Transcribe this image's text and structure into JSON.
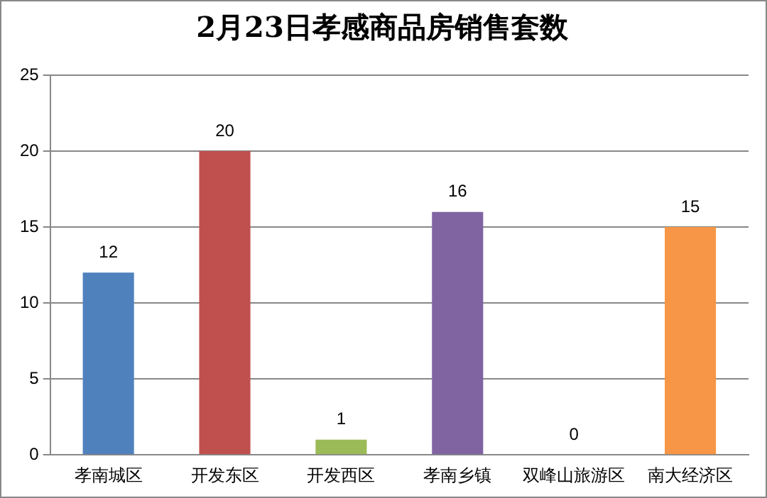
{
  "chart_data": {
    "type": "bar",
    "title": "2月23日孝感商品房销售套数",
    "categories": [
      "孝南城区",
      "开发东区",
      "开发西区",
      "孝南乡镇",
      "双峰山旅游区",
      "南大经济区"
    ],
    "values": [
      12,
      20,
      1,
      16,
      0,
      15
    ],
    "colors": [
      "#4f81bd",
      "#c0504d",
      "#9bbb59",
      "#8064a2",
      "#4bacc6",
      "#f79646"
    ],
    "ylim": [
      0,
      25
    ],
    "yticks": [
      0,
      5,
      10,
      15,
      20,
      25
    ],
    "grid": "y",
    "data_labels": true,
    "legend": false
  }
}
